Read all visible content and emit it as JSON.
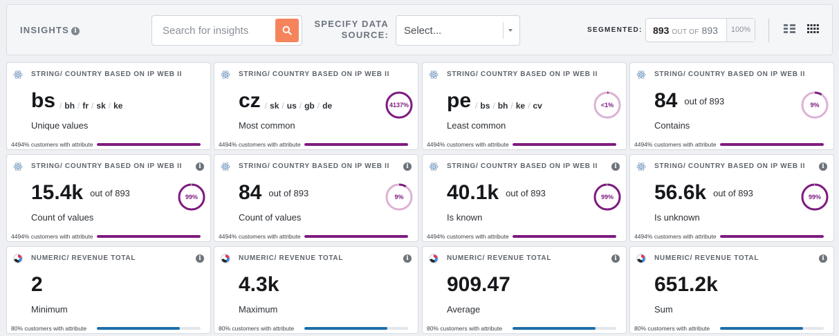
{
  "header": {
    "title": "INSIGHTS",
    "info_glyph": "i",
    "search_placeholder": "Search for insights",
    "source_label_line1": "SPECIFY DATA",
    "source_label_line2": "SOURCE:",
    "select_value": "Select...",
    "segmented_label": "SEGMENTED:",
    "seg_count": "893",
    "seg_out_of": "OUT OF",
    "seg_total": "893",
    "seg_percent": "100%",
    "icons": [
      "search-icon",
      "chevron-down-icon",
      "list-view-icon",
      "grid-view-icon"
    ]
  },
  "colors": {
    "accent": "#f5845c",
    "purple": "#7e1b80",
    "blue": "#1e6fa9"
  },
  "cards": [
    {
      "header": "STRING/ COUNTRY BASED ON IP WEB II",
      "kind": "string",
      "info": false,
      "value": "bs",
      "extras": [
        "bh",
        "fr",
        "sk",
        "ke"
      ],
      "label": "Unique values",
      "footer": "4494% customers with attribute",
      "bar_fraction": 1.0
    },
    {
      "header": "STRING/ COUNTRY BASED ON IP WEB II",
      "kind": "string",
      "info": false,
      "value": "cz",
      "extras": [
        "sk",
        "us",
        "gb",
        "de"
      ],
      "label": "Most common",
      "footer": "4494% customers with attribute",
      "bar_fraction": 1.0,
      "ring": {
        "text": "4137%",
        "fraction": 1.0
      }
    },
    {
      "header": "STRING/ COUNTRY BASED ON IP WEB II",
      "kind": "string",
      "info": false,
      "value": "pe",
      "extras": [
        "bs",
        "bh",
        "ke",
        "cv"
      ],
      "label": "Least common",
      "footer": "4494% customers with attribute",
      "bar_fraction": 1.0,
      "ring": {
        "text": "<1%",
        "fraction": 0.01
      }
    },
    {
      "header": "STRING/ COUNTRY BASED ON IP WEB II",
      "kind": "string",
      "info": false,
      "value": "84",
      "out_of": "out of 893",
      "label": "Contains",
      "footer": "4494% customers with attribute",
      "bar_fraction": 1.0,
      "ring": {
        "text": "9%",
        "fraction": 0.09
      }
    },
    {
      "header": "STRING/ COUNTRY BASED ON IP WEB II",
      "kind": "string",
      "info": true,
      "value": "15.4k",
      "out_of": "out of 893",
      "label": "Count of values",
      "footer": "4494% customers with attribute",
      "bar_fraction": 1.0,
      "ring": {
        "text": "99%",
        "fraction": 0.99
      }
    },
    {
      "header": "STRING/ COUNTRY BASED ON IP WEB II",
      "kind": "string",
      "info": true,
      "value": "84",
      "out_of": "out of 893",
      "label": "Count of values",
      "footer": "4494% customers with attribute",
      "bar_fraction": 1.0,
      "ring": {
        "text": "9%",
        "fraction": 0.09
      }
    },
    {
      "header": "STRING/ COUNTRY BASED ON IP WEB II",
      "kind": "string",
      "info": true,
      "value": "40.1k",
      "out_of": "out of 893",
      "label": "Is known",
      "footer": "4494% customers with attribute",
      "bar_fraction": 1.0,
      "ring": {
        "text": "99%",
        "fraction": 0.99
      }
    },
    {
      "header": "STRING/ COUNTRY BASED ON IP WEB II",
      "kind": "string",
      "info": true,
      "value": "56.6k",
      "out_of": "out of 893",
      "label": "Is unknown",
      "footer": "4494% customers with attribute",
      "bar_fraction": 1.0,
      "ring": {
        "text": "99%",
        "fraction": 0.99
      }
    },
    {
      "header": "NUMERIC/ REVENUE TOTAL",
      "kind": "numeric",
      "info": true,
      "value": "2",
      "label": "Minimum",
      "footer": "80% customers with attribute",
      "bar_fraction": 0.8
    },
    {
      "header": "NUMERIC/ REVENUE TOTAL",
      "kind": "numeric",
      "info": true,
      "value": "4.3k",
      "label": "Maximum",
      "footer": "80% customers with attribute",
      "bar_fraction": 0.8
    },
    {
      "header": "NUMERIC/ REVENUE TOTAL",
      "kind": "numeric",
      "info": true,
      "value": "909.47",
      "label": "Average",
      "footer": "80% customers with attribute",
      "bar_fraction": 0.8
    },
    {
      "header": "NUMERIC/ REVENUE TOTAL",
      "kind": "numeric",
      "info": true,
      "value": "651.2k",
      "label": "Sum",
      "footer": "80% customers with attribute",
      "bar_fraction": 0.8
    }
  ]
}
